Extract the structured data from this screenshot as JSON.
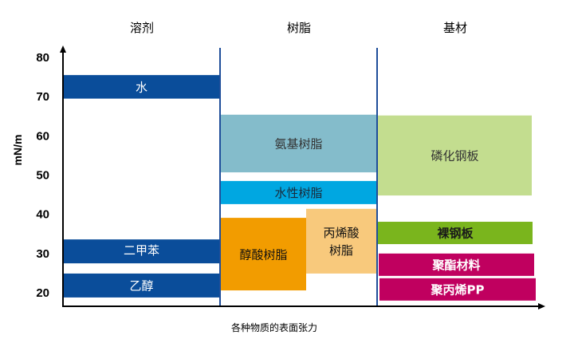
{
  "chart_data": {
    "type": "bar",
    "orientation": "floating-range",
    "title": "",
    "xlabel": "各种物质的表面张力",
    "ylabel": "mN/m",
    "ylim": [
      20,
      80
    ],
    "yticks": [
      20,
      30,
      40,
      50,
      60,
      70,
      80
    ],
    "grid": false,
    "categories": [
      "溶剂",
      "树脂",
      "基材"
    ],
    "series": [
      {
        "name": "水",
        "category": "溶剂",
        "range": [
          69.5,
          75.5
        ],
        "color": "#0a4d9a",
        "text_color": "#ffffff"
      },
      {
        "name": "二甲苯",
        "category": "溶剂",
        "range": [
          27.5,
          33.6
        ],
        "color": "#0a4d9a",
        "text_color": "#ffffff"
      },
      {
        "name": "乙醇",
        "category": "溶剂",
        "range": [
          18.8,
          24.9
        ],
        "color": "#0a4d9a",
        "text_color": "#ffffff"
      },
      {
        "name": "氨基树脂",
        "category": "树脂",
        "range": [
          50.7,
          65.4
        ],
        "color": "#84bccb",
        "text_color": "#333333"
      },
      {
        "name": "水性树脂",
        "category": "树脂",
        "range": [
          42.6,
          48.5
        ],
        "color": "#00a7e1",
        "text_color": "#1a2a3a"
      },
      {
        "name": "醇酸树脂",
        "category": "树脂",
        "range": [
          20.6,
          39.1
        ],
        "color": "#f29c00",
        "text_color": "#111111"
      },
      {
        "name": "丙烯酸树脂",
        "label_lines": [
          "丙烯酸",
          "树脂"
        ],
        "category": "树脂",
        "range": [
          24.9,
          41.4
        ],
        "color": "#f8c97c",
        "text_color": "#111111"
      },
      {
        "name": "磷化钢板",
        "category": "基材",
        "range": [
          44.8,
          65.2
        ],
        "color": "#c3dd8f",
        "text_color": "#333333"
      },
      {
        "name": "裸钢板",
        "category": "基材",
        "range": [
          32.4,
          38.1
        ],
        "color": "#7ab51d",
        "text_color": "#1a1a1a"
      },
      {
        "name": "聚酯材料",
        "category": "基材",
        "range": [
          24.3,
          30.0
        ],
        "color": "#c0005f",
        "text_color": "#ffffff"
      },
      {
        "name": "聚丙烯PP",
        "category": "基材",
        "range": [
          18.0,
          23.7
        ],
        "color": "#c0005f",
        "text_color": "#ffffff"
      }
    ],
    "divider_color": "#1f4e9a",
    "axis_color": "#000000"
  }
}
